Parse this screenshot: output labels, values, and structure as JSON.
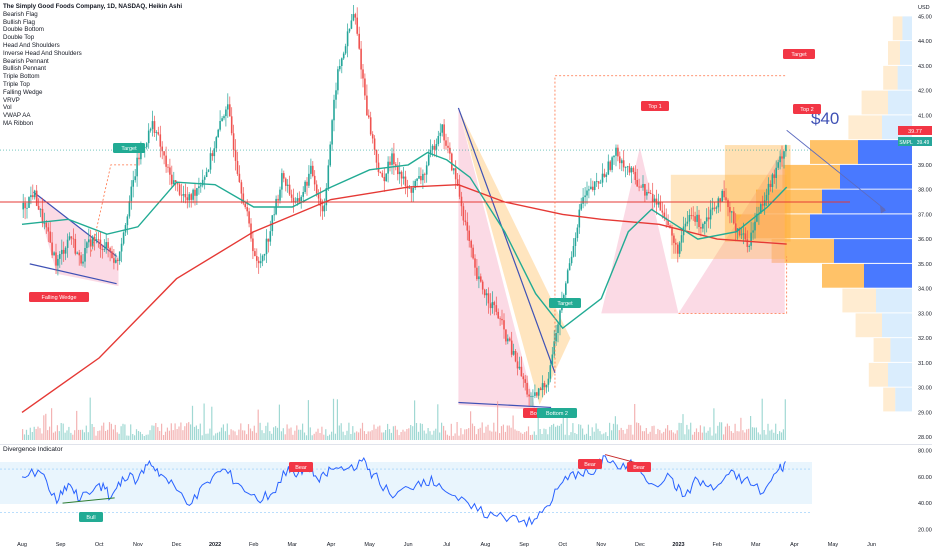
{
  "chart_title": "The Simply Good Foods Company, 1D, NASDAQ, Heikin Ashi",
  "indicators": [
    "Bearish Flag",
    "Bullish Flag",
    "Double Bottom",
    "Double Top",
    "Head And Shoulders",
    "Inverse Head And Shoulders",
    "Bearish Pennant",
    "Bullish Pennant",
    "Triple Bottom",
    "Triple Top",
    "Falling Wedge",
    "VRVP",
    "Vol",
    "VWAP AA",
    "MA Ribbon"
  ],
  "oscillator_label": "Divergence Indicator",
  "currency": "USD",
  "annotation_price": "$40",
  "pattern_labels": {
    "falling_wedge": "Falling Wedge",
    "target_1": "Target",
    "target_2": "Target",
    "target_3": "Target",
    "top_1": "Top 1",
    "top_2": "Top 2",
    "bottom_1": "Bott",
    "bottom_2": "Bottom 2",
    "bull": "Bull",
    "bear_1": "Bear",
    "bear_2": "Bear",
    "bear_3": "Bear"
  },
  "last_price_labels": {
    "price": "39.77",
    "symbol": "SMPL",
    "ma": "39.49"
  },
  "colors": {
    "up": "#26a69a",
    "down": "#ef5350",
    "ma_green": "#22ab94",
    "ma_red": "#e53935",
    "osc": "#2962ff",
    "pattern_fill": "#f8bbd0",
    "orange_fill": "#ffb74d"
  },
  "chart_data": {
    "type": "candlestick",
    "price_axis_ticks": [
      "45.00",
      "44.00",
      "43.00",
      "42.00",
      "41.00",
      "40.00",
      "39.00",
      "38.00",
      "37.00",
      "36.00",
      "35.00",
      "34.00",
      "33.00",
      "32.00",
      "31.00",
      "30.00",
      "29.00",
      "28.00"
    ],
    "time_axis_ticks": [
      "Aug",
      "Sep",
      "Oct",
      "Nov",
      "Dec",
      "2022",
      "Feb",
      "Mar",
      "Apr",
      "May",
      "Jun",
      "Jul",
      "Aug",
      "Sep",
      "Oct",
      "Nov",
      "Dec",
      "2023",
      "Feb",
      "Mar",
      "Apr",
      "May",
      "Jun"
    ],
    "osc_axis_ticks": [
      "80.00",
      "60.00",
      "40.00",
      "20.00"
    ],
    "ylim": [
      27.5,
      45.5
    ],
    "osc_ylim": [
      15,
      82
    ],
    "anchors": [
      {
        "m": 0,
        "p": 37.2
      },
      {
        "m": 0.3,
        "p": 37.9
      },
      {
        "m": 0.9,
        "p": 35.0
      },
      {
        "m": 1.25,
        "p": 36.2
      },
      {
        "m": 1.5,
        "p": 35.1
      },
      {
        "m": 1.8,
        "p": 36.0
      },
      {
        "m": 2.25,
        "p": 35.6
      },
      {
        "m": 2.45,
        "p": 35.0
      },
      {
        "m": 3.0,
        "p": 39.2
      },
      {
        "m": 3.4,
        "p": 40.7
      },
      {
        "m": 3.8,
        "p": 38.6
      },
      {
        "m": 4.3,
        "p": 37.5
      },
      {
        "m": 4.8,
        "p": 38.8
      },
      {
        "m": 5.3,
        "p": 41.5
      },
      {
        "m": 5.6,
        "p": 38.7
      },
      {
        "m": 6.1,
        "p": 34.8
      },
      {
        "m": 6.4,
        "p": 36.2
      },
      {
        "m": 6.75,
        "p": 38.6
      },
      {
        "m": 7.1,
        "p": 37.3
      },
      {
        "m": 7.5,
        "p": 38.8
      },
      {
        "m": 7.8,
        "p": 37.0
      },
      {
        "m": 8.15,
        "p": 42.5
      },
      {
        "m": 8.6,
        "p": 45.2
      },
      {
        "m": 8.95,
        "p": 41.0
      },
      {
        "m": 9.3,
        "p": 38.3
      },
      {
        "m": 9.6,
        "p": 39.3
      },
      {
        "m": 10.0,
        "p": 37.9
      },
      {
        "m": 10.4,
        "p": 38.6
      },
      {
        "m": 10.85,
        "p": 40.6
      },
      {
        "m": 11.3,
        "p": 38.0
      },
      {
        "m": 11.75,
        "p": 34.5
      },
      {
        "m": 12.3,
        "p": 33.0
      },
      {
        "m": 12.8,
        "p": 31.0
      },
      {
        "m": 13.2,
        "p": 29.4
      },
      {
        "m": 13.6,
        "p": 30.3
      },
      {
        "m": 14.0,
        "p": 33.6
      },
      {
        "m": 14.5,
        "p": 37.6
      },
      {
        "m": 14.95,
        "p": 38.3
      },
      {
        "m": 15.4,
        "p": 39.5
      },
      {
        "m": 15.75,
        "p": 38.7
      },
      {
        "m": 16.15,
        "p": 37.9
      },
      {
        "m": 16.6,
        "p": 37.2
      },
      {
        "m": 16.95,
        "p": 35.5
      },
      {
        "m": 17.3,
        "p": 37.0
      },
      {
        "m": 17.6,
        "p": 36.6
      },
      {
        "m": 18.1,
        "p": 37.8
      },
      {
        "m": 18.5,
        "p": 36.5
      },
      {
        "m": 18.8,
        "p": 35.8
      },
      {
        "m": 19.15,
        "p": 37.5
      },
      {
        "m": 19.55,
        "p": 38.8
      },
      {
        "m": 19.75,
        "p": 39.8
      }
    ],
    "ma_ribbon": {
      "green": [
        [
          0,
          36.6
        ],
        [
          1.2,
          36.8
        ],
        [
          2.2,
          36.2
        ],
        [
          3.0,
          36.5
        ],
        [
          4.0,
          38.3
        ],
        [
          5.0,
          38.2
        ],
        [
          6.0,
          37.3
        ],
        [
          7.0,
          37.3
        ],
        [
          8.0,
          38.1
        ],
        [
          9.0,
          38.8
        ],
        [
          10.0,
          39.0
        ],
        [
          10.5,
          39.5
        ],
        [
          11.0,
          39.2
        ],
        [
          11.6,
          38.5
        ],
        [
          12.5,
          36.3
        ],
        [
          13.3,
          33.8
        ],
        [
          14.0,
          32.4
        ],
        [
          15.0,
          33.6
        ],
        [
          15.7,
          36.3
        ],
        [
          16.3,
          37.2
        ],
        [
          16.9,
          36.6
        ],
        [
          17.5,
          36.0
        ],
        [
          18.5,
          36.3
        ],
        [
          19.3,
          37.3
        ],
        [
          19.8,
          38.1
        ]
      ],
      "red": [
        [
          0,
          29.0
        ],
        [
          2.0,
          31.2
        ],
        [
          4.0,
          34.4
        ],
        [
          6.0,
          36.3
        ],
        [
          8.0,
          37.6
        ],
        [
          10.0,
          38.1
        ],
        [
          11.3,
          38.2
        ],
        [
          12.5,
          37.5
        ],
        [
          14.0,
          37.0
        ],
        [
          15.0,
          36.8
        ],
        [
          16.5,
          36.6
        ],
        [
          18.0,
          36.0
        ],
        [
          19.8,
          35.8
        ]
      ]
    },
    "oscillator": [
      [
        0,
        60
      ],
      [
        0.5,
        63
      ],
      [
        0.9,
        40
      ],
      [
        1.2,
        55
      ],
      [
        1.5,
        42
      ],
      [
        2.0,
        55
      ],
      [
        2.3,
        44
      ],
      [
        2.6,
        60
      ],
      [
        3.0,
        58
      ],
      [
        3.3,
        72
      ],
      [
        3.6,
        62
      ],
      [
        4.0,
        50
      ],
      [
        4.4,
        40
      ],
      [
        4.8,
        56
      ],
      [
        5.2,
        66
      ],
      [
        5.6,
        55
      ],
      [
        6.1,
        42
      ],
      [
        6.5,
        48
      ],
      [
        6.9,
        68
      ],
      [
        7.1,
        60
      ],
      [
        7.4,
        70
      ],
      [
        7.7,
        56
      ],
      [
        8.0,
        66
      ],
      [
        8.4,
        66
      ],
      [
        8.8,
        72
      ],
      [
        9.1,
        62
      ],
      [
        9.6,
        44
      ],
      [
        10.0,
        52
      ],
      [
        10.4,
        58
      ],
      [
        10.8,
        55
      ],
      [
        11.3,
        42
      ],
      [
        11.8,
        34
      ],
      [
        12.3,
        30
      ],
      [
        12.8,
        30
      ],
      [
        13.2,
        24
      ],
      [
        13.6,
        38
      ],
      [
        14.0,
        56
      ],
      [
        14.4,
        64
      ],
      [
        14.8,
        62
      ],
      [
        15.1,
        76
      ],
      [
        15.5,
        66
      ],
      [
        15.9,
        70
      ],
      [
        16.3,
        55
      ],
      [
        16.8,
        60
      ],
      [
        17.1,
        45
      ],
      [
        17.5,
        58
      ],
      [
        17.9,
        50
      ],
      [
        18.3,
        62
      ],
      [
        18.7,
        58
      ],
      [
        19.2,
        48
      ],
      [
        19.6,
        66
      ],
      [
        19.8,
        70
      ]
    ],
    "volume_profile": [
      {
        "price": 44.5,
        "buy": 0.08,
        "sell": 0.08
      },
      {
        "price": 43.5,
        "buy": 0.1,
        "sell": 0.1
      },
      {
        "price": 42.5,
        "buy": 0.12,
        "sell": 0.12
      },
      {
        "price": 41.5,
        "buy": 0.2,
        "sell": 0.22
      },
      {
        "price": 40.5,
        "buy": 0.25,
        "sell": 0.28
      },
      {
        "price": 39.5,
        "buy": 0.45,
        "sell": 0.4
      },
      {
        "price": 38.5,
        "buy": 0.6,
        "sell": 0.48
      },
      {
        "price": 37.5,
        "buy": 0.75,
        "sell": 0.55
      },
      {
        "price": 36.5,
        "buy": 0.85,
        "sell": 0.62
      },
      {
        "price": 35.5,
        "buy": 0.65,
        "sell": 0.52
      },
      {
        "price": 34.5,
        "buy": 0.4,
        "sell": 0.35
      },
      {
        "price": 33.5,
        "buy": 0.3,
        "sell": 0.28
      },
      {
        "price": 32.5,
        "buy": 0.25,
        "sell": 0.22
      },
      {
        "price": 31.5,
        "buy": 0.18,
        "sell": 0.14
      },
      {
        "price": 30.5,
        "buy": 0.2,
        "sell": 0.16
      },
      {
        "price": 29.5,
        "buy": 0.14,
        "sell": 0.1
      }
    ]
  }
}
